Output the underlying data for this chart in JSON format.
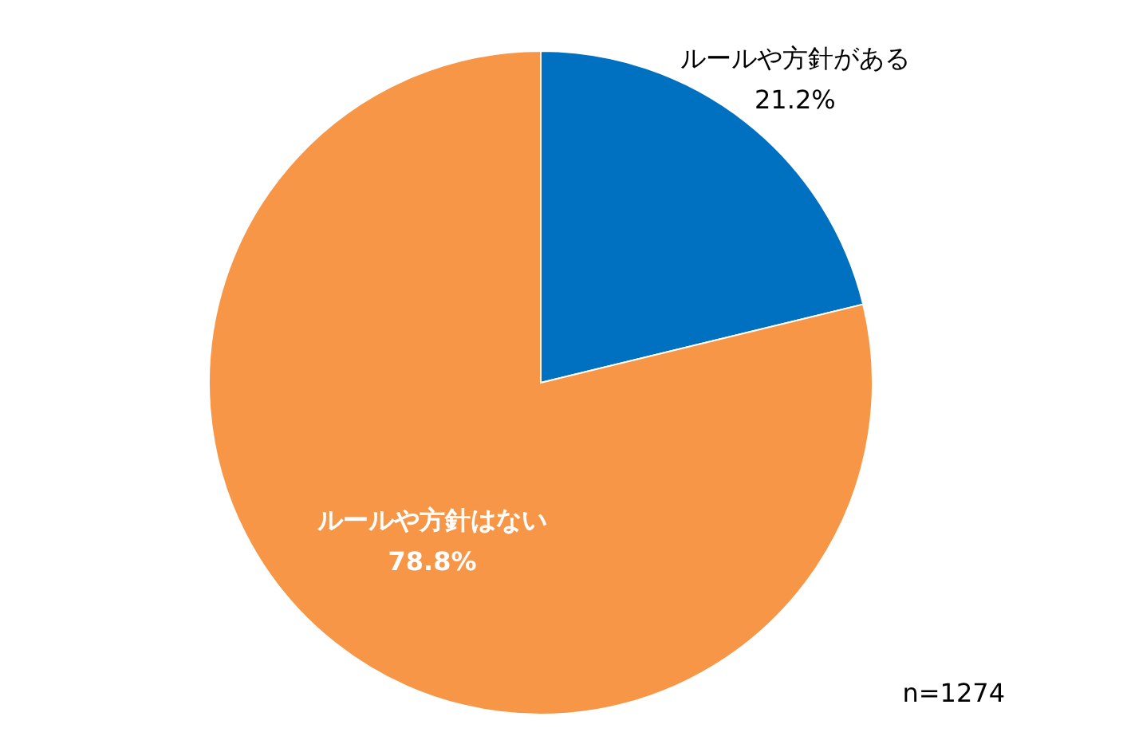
{
  "chart_data": {
    "type": "pie",
    "categories": [
      "ルールや方針がある",
      "ルールや方針はない"
    ],
    "values": [
      21.2,
      78.8
    ],
    "colors": [
      "#0070c0",
      "#f79646"
    ],
    "value_labels": [
      "21.2%",
      "78.8%"
    ],
    "annotations": [
      "n=1274"
    ]
  }
}
